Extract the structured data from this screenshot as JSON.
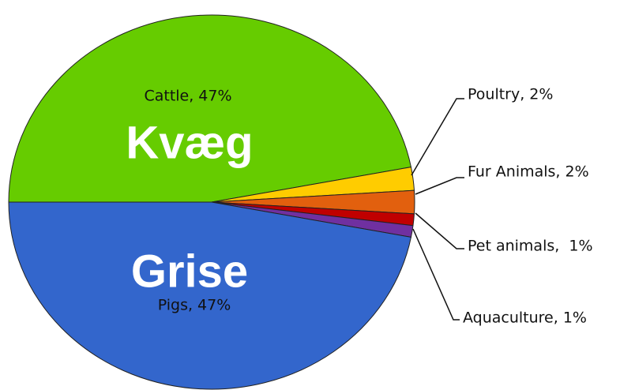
{
  "chart_data": {
    "type": "pie",
    "values": [
      47,
      2,
      2,
      1,
      1,
      47
    ],
    "value_labels": [
      "Cattle, 47%",
      "Poultry, 2%",
      "Fur Animals, 2%",
      "Pet animals,  1%",
      "Aquaculture, 1%",
      "Pigs, 47%"
    ],
    "colors": [
      "#66cc00",
      "#ffcc00",
      "#e2600e",
      "#c00000",
      "#7030a0",
      "#3366cc"
    ],
    "annotations": [
      "Kvæg",
      "Grise"
    ]
  }
}
